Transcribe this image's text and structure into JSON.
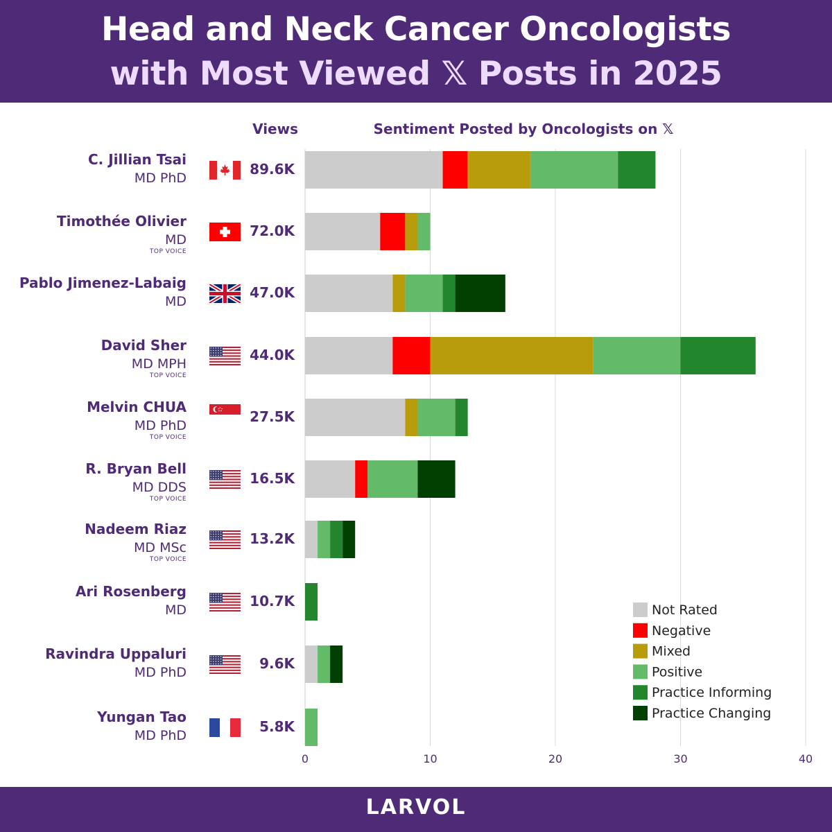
{
  "header": {
    "title_line1": "Head and Neck Cancer Oncologists",
    "title_line2": "with Most Viewed 𝕏 Posts in 2025"
  },
  "footer": {
    "brand": "LARVOL"
  },
  "columns": {
    "views": "Views",
    "sentiment": "Sentiment Posted by Oncologists on 𝕏"
  },
  "colors": {
    "header_bg": "#4f2a77",
    "text": "#4f2a77",
    "Not Rated": "#cccccc",
    "Negative": "#ff0000",
    "Mixed": "#b89c0b",
    "Positive": "#63bb69",
    "Practice Informing": "#23862c",
    "Practice Changing": "#013f03"
  },
  "oncologists": [
    {
      "name": "C. Jillian Tsai",
      "credentials": "MD PhD",
      "badge": "",
      "flag": "canada-flag",
      "views": "89.6K"
    },
    {
      "name": "Timothée Olivier",
      "credentials": "MD",
      "badge": "TOP VOICE",
      "flag": "switzerland-flag",
      "views": "72.0K"
    },
    {
      "name": "Pablo Jimenez-Labaig",
      "credentials": "MD",
      "badge": "",
      "flag": "uk-flag",
      "views": "47.0K"
    },
    {
      "name": "David Sher",
      "credentials": "MD MPH",
      "badge": "TOP VOICE",
      "flag": "usa-flag",
      "views": "44.0K"
    },
    {
      "name": "Melvin CHUA",
      "credentials": "MD PhD",
      "badge": "TOP VOICE",
      "flag": "singapore-flag",
      "views": "27.5K"
    },
    {
      "name": "R. Bryan Bell",
      "credentials": "MD DDS",
      "badge": "TOP VOICE",
      "flag": "usa-flag",
      "views": "16.5K"
    },
    {
      "name": "Nadeem Riaz",
      "credentials": "MD MSc",
      "badge": "TOP VOICE",
      "flag": "usa-flag",
      "views": "13.2K"
    },
    {
      "name": "Ari Rosenberg",
      "credentials": "MD",
      "badge": "",
      "flag": "usa-flag",
      "views": "10.7K"
    },
    {
      "name": "Ravindra Uppaluri",
      "credentials": "MD PhD",
      "badge": "",
      "flag": "usa-flag",
      "views": "9.6K"
    },
    {
      "name": "Yungan Tao",
      "credentials": "MD PhD",
      "badge": "",
      "flag": "france-flag",
      "views": "5.8K"
    }
  ],
  "chart_data": {
    "type": "bar",
    "orientation": "horizontal",
    "stacked": true,
    "title": "Sentiment Posted by Oncologists on 𝕏",
    "categories": [
      "C. Jillian Tsai",
      "Timothée Olivier",
      "Pablo Jimenez-Labaig",
      "David Sher",
      "Melvin CHUA",
      "R. Bryan Bell",
      "Nadeem Riaz",
      "Ari Rosenberg",
      "Ravindra Uppaluri",
      "Yungan Tao"
    ],
    "series": [
      {
        "name": "Not Rated",
        "values": [
          11,
          6,
          7,
          7,
          8,
          4,
          1,
          0,
          1,
          0
        ]
      },
      {
        "name": "Negative",
        "values": [
          2,
          2,
          0,
          3,
          0,
          1,
          0,
          0,
          0,
          0
        ]
      },
      {
        "name": "Mixed",
        "values": [
          5,
          1,
          1,
          13,
          1,
          0,
          0,
          0,
          0,
          0
        ]
      },
      {
        "name": "Positive",
        "values": [
          7,
          1,
          3,
          7,
          3,
          4,
          1,
          0,
          1,
          1
        ]
      },
      {
        "name": "Practice Informing",
        "values": [
          3,
          0,
          1,
          6,
          1,
          0,
          1,
          1,
          0,
          0
        ]
      },
      {
        "name": "Practice Changing",
        "values": [
          0,
          0,
          4,
          0,
          0,
          3,
          1,
          0,
          1,
          0
        ]
      }
    ],
    "xlim": [
      0,
      40
    ],
    "xticks": [
      "0",
      "10",
      "20",
      "30",
      "40"
    ],
    "grid": true,
    "legend": "bottom-right"
  }
}
